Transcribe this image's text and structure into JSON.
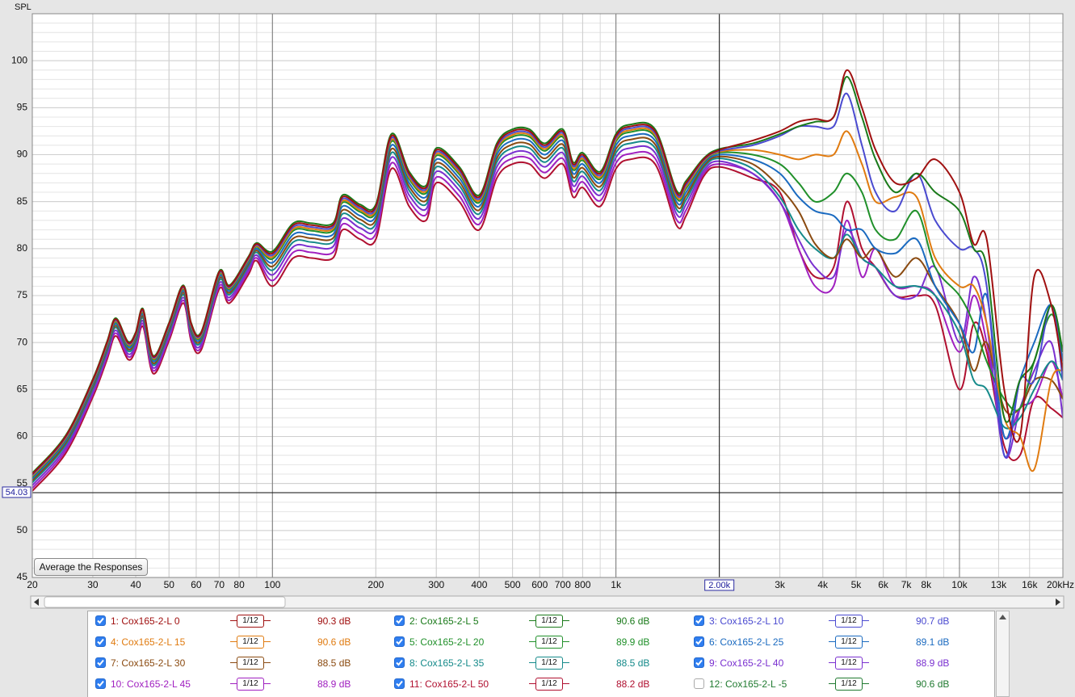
{
  "chart_data": {
    "type": "line",
    "y_label": "SPL",
    "log_x": true,
    "grid": true,
    "xlim": [
      20,
      20000
    ],
    "ylim": [
      45,
      105
    ],
    "xticks": [
      20,
      30,
      40,
      50,
      60,
      70,
      80,
      100,
      200,
      300,
      400,
      500,
      600,
      700,
      800,
      {
        "value": 1000,
        "label": "1k"
      },
      {
        "value": 3000,
        "label": "3k"
      },
      {
        "value": 4000,
        "label": "4k"
      },
      {
        "value": 5000,
        "label": "5k"
      },
      {
        "value": 6000,
        "label": "6k"
      },
      {
        "value": 7000,
        "label": "7k"
      },
      {
        "value": 8000,
        "label": "8k"
      },
      {
        "value": 10000,
        "label": "10k"
      },
      {
        "value": 13000,
        "label": "13k"
      },
      {
        "value": 16000,
        "label": "16k"
      },
      {
        "value": 20000,
        "label": "20kHz"
      }
    ],
    "yticks": [
      45,
      50,
      55,
      60,
      65,
      70,
      75,
      80,
      85,
      90,
      95,
      100
    ],
    "cursor": {
      "x": {
        "value": 2000,
        "label": "2.00k"
      },
      "y": 54.03
    },
    "x": [
      20,
      25,
      30,
      33,
      35,
      38,
      40,
      42,
      45,
      50,
      55,
      58,
      62,
      70,
      75,
      85,
      90,
      100,
      115,
      130,
      150,
      160,
      180,
      200,
      222,
      250,
      280,
      300,
      350,
      400,
      450,
      500,
      560,
      620,
      700,
      750,
      800,
      900,
      1000,
      1100,
      1300,
      1500,
      1600,
      1800,
      2000,
      2500,
      3000,
      3400,
      3800,
      4300,
      4700,
      5200,
      5700,
      6500,
      7500,
      8500,
      10000,
      11000,
      12000,
      13500,
      15000,
      16500,
      18500,
      20000
    ],
    "series": [
      {
        "name": "1: Cox165-2-L 0",
        "color": "#a01010",
        "checked": true,
        "smoothing": "1/12",
        "level": "90.3 dB",
        "values": [
          56,
          60,
          66,
          70,
          72.5,
          70,
          71,
          73.5,
          68.5,
          72,
          76,
          72,
          71,
          77.5,
          76,
          79,
          80.5,
          79.5,
          82.5,
          82.5,
          82.5,
          85.5,
          84.5,
          84.5,
          92,
          88,
          86.5,
          90.5,
          88.5,
          85.5,
          91,
          92.5,
          92.5,
          91,
          92.5,
          89,
          90,
          88,
          92,
          93,
          92.5,
          86,
          87,
          89.5,
          90.5,
          91.5,
          92.5,
          93.5,
          93.8,
          94,
          99,
          95,
          90.5,
          87,
          87.5,
          89.5,
          86,
          80.5,
          81,
          65,
          60,
          77,
          74,
          67
        ]
      },
      {
        "name": "2: Cox165-2-L 5",
        "color": "#1a7a1a",
        "checked": true,
        "smoothing": "1/12",
        "level": "90.6 dB",
        "values": [
          56.1,
          60.1,
          66.1,
          70.1,
          72.6,
          70.1,
          71.1,
          73.6,
          68.6,
          72.1,
          76.1,
          72.1,
          71.1,
          77.6,
          76.1,
          79.1,
          80.6,
          79.7,
          82.7,
          82.7,
          82.7,
          85.7,
          84.7,
          84.7,
          92.2,
          88.2,
          86.7,
          90.7,
          88.7,
          85.7,
          91.2,
          92.7,
          92.7,
          91.2,
          92.7,
          89.2,
          90.2,
          88.2,
          92.2,
          93.2,
          92.7,
          86.2,
          87.2,
          89.6,
          90.6,
          91.2,
          92.2,
          93,
          93.5,
          94,
          98.3,
          94,
          89.5,
          86,
          88,
          86,
          84,
          80,
          78,
          62,
          66,
          68,
          74,
          69
        ]
      },
      {
        "name": "3: Cox165-2-L 10",
        "color": "#4a4ad0",
        "checked": true,
        "smoothing": "1/12",
        "level": "90.7 dB",
        "values": [
          55.9,
          59.9,
          65.9,
          69.9,
          72.4,
          69.9,
          70.9,
          73.4,
          68.4,
          71.9,
          75.9,
          71.9,
          70.9,
          77.4,
          75.9,
          78.9,
          80.4,
          79.3,
          82.3,
          82.3,
          82.3,
          85.3,
          84.3,
          84.3,
          91.8,
          87.8,
          86.3,
          90.3,
          88.3,
          85.3,
          90.8,
          92.3,
          92.3,
          90.8,
          92.3,
          88.8,
          89.8,
          87.8,
          91.8,
          92.8,
          92.3,
          85.8,
          86.8,
          89.4,
          90.4,
          91,
          92,
          93,
          93,
          93,
          96.5,
          91,
          86,
          84,
          88,
          83,
          80,
          80,
          76,
          58,
          66,
          66,
          74,
          66
        ]
      },
      {
        "name": "4: Cox165-2-L 15",
        "color": "#e07b10",
        "checked": true,
        "smoothing": "1/12",
        "level": "90.6 dB",
        "values": [
          55.8,
          59.8,
          65.8,
          69.8,
          72.3,
          69.8,
          70.8,
          73.3,
          68.3,
          71.8,
          75.8,
          71.8,
          70.8,
          77.3,
          75.8,
          78.8,
          80.3,
          79.1,
          82.1,
          82.1,
          82.1,
          85.1,
          84.1,
          84.1,
          91.6,
          87.6,
          86.1,
          90.1,
          88.1,
          85.1,
          90.6,
          92.1,
          92.1,
          90.6,
          92.1,
          88.6,
          89.6,
          87.6,
          91.6,
          92.6,
          92.1,
          85.6,
          86.6,
          89.3,
          90.3,
          90.5,
          90,
          89.5,
          90,
          90,
          92.5,
          89,
          85,
          85.5,
          85.5,
          79,
          76,
          76,
          72,
          62,
          60,
          56.5,
          66,
          67
        ]
      },
      {
        "name": "5: Cox165-2-L 20",
        "color": "#20902a",
        "checked": true,
        "smoothing": "1/12",
        "level": "89.9 dB",
        "values": [
          55.7,
          59.7,
          65.7,
          69.7,
          72.2,
          69.7,
          70.7,
          73.2,
          68.2,
          71.7,
          75.7,
          71.7,
          70.7,
          77.2,
          75.7,
          78.7,
          80.2,
          78.9,
          81.9,
          81.9,
          81.9,
          84.9,
          83.9,
          83.9,
          91.4,
          87.4,
          85.9,
          89.9,
          87.9,
          84.9,
          90.4,
          91.9,
          91.9,
          90.4,
          91.9,
          88.4,
          89.4,
          87.4,
          91.4,
          92.4,
          91.9,
          85.4,
          86.4,
          89.2,
          90.2,
          90,
          89,
          87,
          85,
          86,
          88,
          86,
          82,
          81,
          84,
          78,
          75,
          72,
          68,
          64,
          63,
          68,
          73,
          69
        ]
      },
      {
        "name": "6: Cox165-2-L 25",
        "color": "#1a6ac0",
        "checked": true,
        "smoothing": "1/12",
        "level": "89.1 dB",
        "values": [
          55.5,
          59.5,
          65.5,
          69.5,
          72,
          69.5,
          70.5,
          73,
          68,
          71.5,
          75.5,
          71.5,
          70.5,
          77,
          75.5,
          78.5,
          80,
          78.5,
          81.5,
          81.5,
          81.5,
          84.5,
          83.5,
          83.5,
          91,
          87,
          85.5,
          89.5,
          87.5,
          84.5,
          90,
          91.5,
          91.5,
          90,
          91.5,
          88,
          89,
          87,
          91,
          92,
          91.5,
          85,
          86,
          89,
          90,
          89.5,
          88,
          85.5,
          84,
          83.5,
          82,
          82,
          80,
          79.5,
          81,
          76,
          72,
          69,
          75,
          60,
          66,
          70,
          74,
          68
        ]
      },
      {
        "name": "7: Cox165-2-L 30",
        "color": "#8a4a10",
        "checked": true,
        "smoothing": "1/12",
        "level": "88.5 dB",
        "values": [
          55.3,
          59.3,
          65.3,
          69.3,
          71.8,
          69.3,
          70.3,
          72.8,
          67.8,
          71.3,
          75.3,
          71.3,
          70.3,
          76.8,
          75.3,
          78.3,
          79.8,
          78.1,
          81.1,
          81.1,
          81.1,
          84.1,
          83.1,
          83.1,
          90.6,
          86.6,
          85.1,
          89.1,
          87.1,
          84.1,
          89.6,
          91.1,
          91.1,
          89.6,
          91.1,
          87.6,
          88.6,
          86.6,
          90.6,
          91.6,
          91.1,
          84.6,
          85.6,
          88.8,
          89.8,
          89,
          86.5,
          84,
          80.5,
          79,
          81,
          79,
          80,
          77,
          79,
          76,
          72,
          67,
          70,
          63,
          63,
          66,
          66,
          64
        ]
      },
      {
        "name": "8: Cox165-2-L 35",
        "color": "#158a8a",
        "checked": true,
        "smoothing": "1/12",
        "level": "88.5 dB",
        "values": [
          55.1,
          59.1,
          65.1,
          69.1,
          71.6,
          69.1,
          70.1,
          72.6,
          67.6,
          71.1,
          75.1,
          71.1,
          70.1,
          76.6,
          75.1,
          78.1,
          79.6,
          77.7,
          80.7,
          80.7,
          80.7,
          83.7,
          82.7,
          82.7,
          90.2,
          86.2,
          84.7,
          88.7,
          86.7,
          83.7,
          89.2,
          90.7,
          90.7,
          89.2,
          90.7,
          87.2,
          88.2,
          86.2,
          90.2,
          91.2,
          90.7,
          84.2,
          85.2,
          88.6,
          89.6,
          88.5,
          85.5,
          82,
          80,
          79,
          81.5,
          79,
          78,
          76,
          76,
          75,
          71,
          66,
          65,
          61,
          62,
          65,
          68,
          66
        ]
      },
      {
        "name": "9: Cox165-2-L 40",
        "color": "#7a30d0",
        "checked": true,
        "smoothing": "1/12",
        "level": "88.9 dB",
        "values": [
          54.8,
          58.8,
          64.8,
          68.8,
          71.3,
          68.8,
          69.8,
          72.3,
          67.3,
          70.8,
          74.8,
          70.8,
          69.8,
          76.3,
          74.8,
          77.8,
          79.3,
          77.2,
          80.2,
          80.2,
          80.2,
          83.2,
          82.2,
          82.2,
          89.7,
          85.7,
          84.2,
          88.2,
          86.2,
          83.2,
          88.7,
          90.2,
          90.2,
          88.7,
          90.2,
          86.7,
          87.7,
          85.7,
          89.7,
          90.7,
          90.2,
          83.7,
          84.7,
          88.3,
          89.3,
          88,
          85,
          81,
          78,
          77,
          82,
          79,
          78,
          75,
          75,
          78,
          70,
          77,
          72,
          58,
          63,
          67,
          70,
          62
        ]
      },
      {
        "name": "10: Cox165-2-L 45",
        "color": "#a020c0",
        "checked": true,
        "smoothing": "1/12",
        "level": "88.9 dB",
        "values": [
          54.5,
          58.5,
          64.5,
          68.5,
          71,
          68.5,
          69.5,
          72,
          67,
          70.5,
          74.5,
          70.5,
          69.5,
          76,
          74.5,
          77.5,
          79,
          76.6,
          79.6,
          79.6,
          79.6,
          82.6,
          81.6,
          81.6,
          89.1,
          85.1,
          83.6,
          87.6,
          85.6,
          82.6,
          88.1,
          89.6,
          89.6,
          88.1,
          89.6,
          86.1,
          87.1,
          85.1,
          89.1,
          90.1,
          89.6,
          83.1,
          84.1,
          88,
          89,
          88,
          85,
          80,
          76,
          76,
          83,
          77,
          80,
          76,
          76,
          75,
          69,
          75,
          70,
          60,
          63,
          64,
          68,
          64
        ]
      },
      {
        "name": "11: Cox165-2-L 50",
        "color": "#b01030",
        "checked": true,
        "smoothing": "1/12",
        "level": "88.2 dB",
        "values": [
          54.2,
          58.2,
          64.2,
          68.2,
          70.7,
          68.2,
          69.2,
          71.7,
          66.7,
          70.2,
          74.2,
          70.2,
          69.2,
          75.7,
          74.2,
          77.2,
          78.7,
          76,
          79,
          79,
          79,
          82,
          81,
          81,
          88.5,
          84.5,
          83,
          87,
          85,
          82,
          87.5,
          89,
          89,
          87.5,
          89,
          85.5,
          86.5,
          84.5,
          88.5,
          89.5,
          89,
          82.5,
          83.5,
          87.7,
          88.7,
          87.5,
          86,
          80,
          77,
          78,
          85,
          80,
          78,
          75,
          75,
          74,
          65,
          72,
          69,
          59,
          58,
          64,
          63,
          62
        ]
      }
    ],
    "hidden_series": [
      {
        "name": "12: Cox165-2-L -5",
        "color": "#207a30",
        "checked": false,
        "smoothing": "1/12",
        "level": "90.6 dB"
      }
    ]
  },
  "button": "Average the Responses"
}
